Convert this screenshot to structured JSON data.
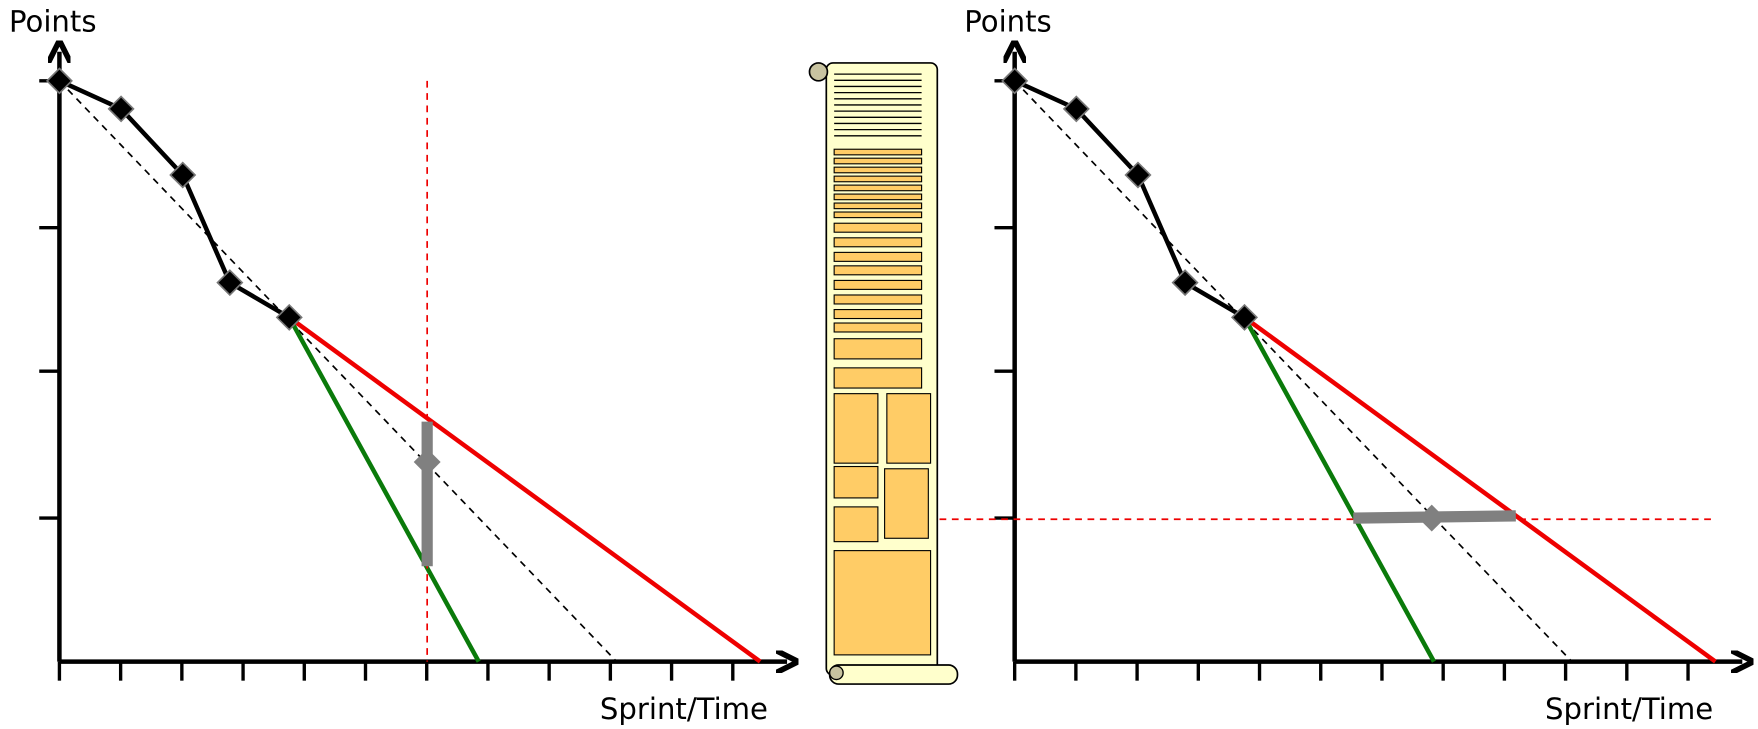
{
  "left_chart": {
    "y_label": "Points",
    "x_label": "Sprint/Time"
  },
  "right_chart": {
    "y_label": "Points",
    "x_label": "Sprint/Time"
  }
}
